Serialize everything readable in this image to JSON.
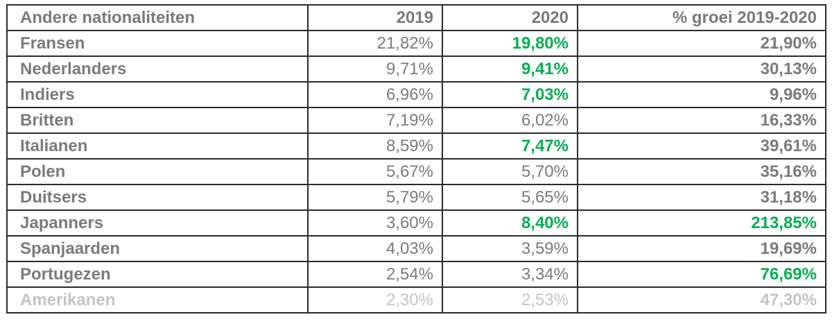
{
  "table": {
    "headers": {
      "name": "Andere nationaliteiten",
      "y2019": "2019",
      "y2020": "2020",
      "growth": "% groei 2019-2020"
    },
    "rows": [
      {
        "name": "Fransen",
        "y2019": "21,82%",
        "y2020": "19,80%",
        "growth": "21,90%",
        "hl2020": true,
        "hlGrowth": false,
        "faded": false
      },
      {
        "name": "Nederlanders",
        "y2019": "9,71%",
        "y2020": "9,41%",
        "growth": "30,13%",
        "hl2020": true,
        "hlGrowth": false,
        "faded": false
      },
      {
        "name": "Indiers",
        "y2019": "6,96%",
        "y2020": "7,03%",
        "growth": "9,96%",
        "hl2020": true,
        "hlGrowth": false,
        "faded": false
      },
      {
        "name": "Britten",
        "y2019": "7,19%",
        "y2020": "6,02%",
        "growth": "16,33%",
        "hl2020": false,
        "hlGrowth": false,
        "faded": false
      },
      {
        "name": "Italianen",
        "y2019": "8,59%",
        "y2020": "7,47%",
        "growth": "39,61%",
        "hl2020": true,
        "hlGrowth": false,
        "faded": false
      },
      {
        "name": "Polen",
        "y2019": "5,67%",
        "y2020": "5,70%",
        "growth": "35,16%",
        "hl2020": false,
        "hlGrowth": false,
        "faded": false
      },
      {
        "name": "Duitsers",
        "y2019": "5,79%",
        "y2020": "5,65%",
        "growth": "31,18%",
        "hl2020": false,
        "hlGrowth": false,
        "faded": false
      },
      {
        "name": "Japanners",
        "y2019": "3,60%",
        "y2020": "8,40%",
        "growth": "213,85%",
        "hl2020": true,
        "hlGrowth": true,
        "faded": false
      },
      {
        "name": "Spanjaarden",
        "y2019": "4,03%",
        "y2020": "3,59%",
        "growth": "19,69%",
        "hl2020": false,
        "hlGrowth": false,
        "faded": false
      },
      {
        "name": "Portugezen",
        "y2019": "2,54%",
        "y2020": "3,34%",
        "growth": "76,69%",
        "hl2020": false,
        "hlGrowth": true,
        "faded": false
      },
      {
        "name": "Amerikanen",
        "y2019": "2,30%",
        "y2020": "2,53%",
        "growth": "47,30%",
        "hl2020": false,
        "hlGrowth": false,
        "faded": true
      }
    ]
  },
  "colors": {
    "highlight": "#00b050",
    "text": "#7b7b7b",
    "faded": "#c4c4c4",
    "border": "#2b2b2b"
  }
}
